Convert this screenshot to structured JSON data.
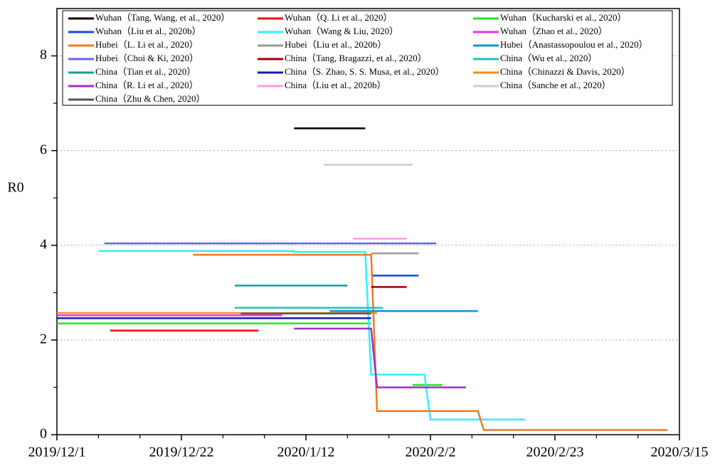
{
  "chart_data": {
    "type": "line",
    "ylabel": "R0",
    "xlim": [
      "2019/12/1",
      "2020/3/15"
    ],
    "xticks": [
      "2019/12/1",
      "2019/12/22",
      "2020/1/12",
      "2020/2/2",
      "2020/2/23",
      "2020/3/15"
    ],
    "ylim": [
      0,
      9
    ],
    "yticks": [
      0,
      2,
      4,
      6,
      8
    ],
    "grid": true,
    "legend": "top",
    "series": [
      {
        "name": "Wuhan（Tang, Wang, et al., 2020）",
        "color": "#000000",
        "x": [
          "2020/1/10",
          "2020/1/22"
        ],
        "values": [
          6.47,
          6.47
        ]
      },
      {
        "name": "Wuhan（Q. Li et al., 2020）",
        "color": "#ff0000",
        "x": [
          "2019/12/10",
          "2020/1/4"
        ],
        "values": [
          2.2,
          2.2
        ]
      },
      {
        "name": "Wuhan（Kucharski et al., 2020）",
        "color": "#22e622",
        "x": [
          "2019/12/1",
          "2020/1/23",
          null,
          "2020/1/30",
          "2020/2/4"
        ],
        "values": [
          2.35,
          2.35,
          null,
          1.05,
          1.05
        ]
      },
      {
        "name": "Wuhan（Liu et al., 2020b）",
        "color": "#1446e0",
        "x": [
          "2020/1/23",
          "2020/1/31"
        ],
        "values": [
          3.36,
          3.36
        ]
      },
      {
        "name": "Wuhan（Wang & Liu, 2020）",
        "color": "#33eeff",
        "x": [
          "2019/12/8",
          "2020/1/10",
          "2020/1/10",
          "2020/1/22",
          "2020/1/23",
          "2020/2/1",
          "2020/2/2",
          "2020/2/18"
        ],
        "values": [
          3.88,
          3.88,
          3.86,
          3.86,
          1.27,
          1.27,
          0.32,
          0.32
        ]
      },
      {
        "name": "Wuhan（Zhao et al., 2020）",
        "color": "#ee33ee",
        "x": [
          "2019/12/1",
          "2020/1/8"
        ],
        "values": [
          2.52,
          2.52
        ]
      },
      {
        "name": "Hubei（L. Li et al., 2020）",
        "color": "#f07a22",
        "x": [
          "2019/12/24",
          "2020/1/23",
          "2020/1/24",
          "2020/2/10",
          "2020/2/11",
          "2020/3/13"
        ],
        "values": [
          3.8,
          3.8,
          0.5,
          0.5,
          0.1,
          0.1
        ]
      },
      {
        "name": "Hubei（Liu et al., 2020b）",
        "color": "#999999",
        "x": [
          "2020/1/23",
          "2020/1/31"
        ],
        "values": [
          3.83,
          3.83
        ]
      },
      {
        "name": "Hubei（Anastassopoulou et al., 2020）",
        "color": "#1a90d0",
        "x": [
          "2020/1/16",
          "2020/2/10"
        ],
        "values": [
          2.61,
          2.61
        ]
      },
      {
        "name": "Hubei（Choi & Ki, 2020）",
        "color": "#6464ee",
        "x": [
          "2019/12/9",
          "2020/2/3"
        ],
        "values": [
          4.04,
          4.04
        ]
      },
      {
        "name": "China（Tang, Bragazzi, et al., 2020）",
        "color": "#a00000",
        "x": [
          "2020/1/23",
          "2020/1/29"
        ],
        "values": [
          3.12,
          3.12
        ]
      },
      {
        "name": "China（Wu et al., 2020）",
        "color": "#22c2c2",
        "x": [
          "2019/12/31",
          "2020/1/25"
        ],
        "values": [
          2.68,
          2.68
        ]
      },
      {
        "name": "China（Tian et al., 2020）",
        "color": "#1e9a9a",
        "x": [
          "2019/12/31",
          "2020/1/19"
        ],
        "values": [
          3.15,
          3.15
        ]
      },
      {
        "name": "China（S. Zhao, S. S. Musa, et al., 2020）",
        "color": "#1a1ab0",
        "x": [
          "2019/12/1",
          "2020/1/23"
        ],
        "values": [
          2.46,
          2.46
        ]
      },
      {
        "name": "China（Chinazzi & Davis, 2020）",
        "color": "#ff8a10",
        "x": [
          "2019/12/1",
          "2020/1/24"
        ],
        "values": [
          2.57,
          2.57
        ]
      },
      {
        "name": "China（R. Li et al., 2020）",
        "color": "#a030c0",
        "x": [
          "2020/1/10",
          "2020/1/23",
          "2020/1/24",
          "2020/2/8"
        ],
        "values": [
          2.24,
          2.24,
          1.0,
          1.0
        ]
      },
      {
        "name": "China（Liu et al., 2020b）",
        "color": "#ff99ee",
        "x": [
          "2020/1/20",
          "2020/1/29"
        ],
        "values": [
          4.14,
          4.14
        ]
      },
      {
        "name": "China（Sanche et al., 2020）",
        "color": "#cccccc",
        "x": [
          "2020/1/15",
          "2020/1/30"
        ],
        "values": [
          5.7,
          5.7
        ]
      },
      {
        "name": "China（Zhu & Chen, 2020）",
        "color": "#555555",
        "x": [
          "2020/1/1",
          "2020/1/23"
        ],
        "values": [
          2.56,
          2.56
        ]
      }
    ]
  }
}
